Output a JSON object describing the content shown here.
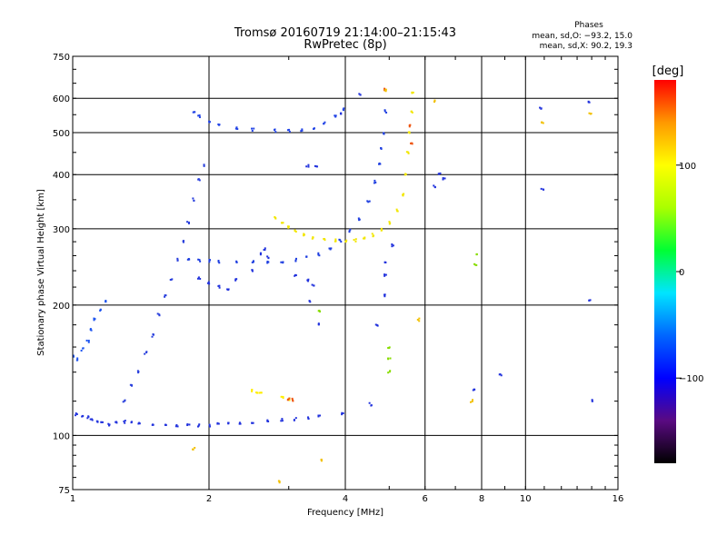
{
  "chart_data": {
    "type": "scatter",
    "title": "Tromsø 20160719 21:14:00–21:15:43",
    "subtitle": "RwPretec (8p)",
    "xlabel": "Frequency [MHz]",
    "ylabel": "Stationary phase Virtual Height [km]",
    "x_scale": "log",
    "y_scale": "log",
    "xlim": [
      1,
      16
    ],
    "ylim": [
      75,
      750
    ],
    "x_ticks": [
      1,
      2,
      4,
      6,
      8,
      10,
      16
    ],
    "y_ticks": [
      75,
      100,
      200,
      300,
      400,
      500,
      600,
      750
    ],
    "grid": true,
    "phase_info": {
      "heading": "Phases",
      "line_o": "mean, sd,O: −93.2, 15.0",
      "line_x": "mean, sd,X:  90.2, 19.3"
    },
    "colorbar": {
      "label": "[deg]",
      "range": [
        -180,
        180
      ],
      "ticks": [
        100,
        0,
        -100
      ],
      "tick_labels": [
        "100",
        "0",
        "−100"
      ],
      "stops": [
        "#000000",
        "#5a0a82",
        "#0000ff",
        "#0066ff",
        "#00e5ff",
        "#00ff33",
        "#aaff00",
        "#ffff00",
        "#ff9900",
        "#ff0000"
      ]
    },
    "series": [
      {
        "color": "#2233dd",
        "phase": -95,
        "points": [
          [
            1.02,
            112
          ],
          [
            1.05,
            111
          ],
          [
            1.08,
            110
          ],
          [
            1.1,
            109
          ],
          [
            1.13,
            108
          ],
          [
            1.16,
            107
          ],
          [
            1.2,
            106
          ],
          [
            1.25,
            107
          ],
          [
            1.3,
            107.5
          ],
          [
            1.35,
            107
          ],
          [
            1.4,
            106.5
          ],
          [
            1.5,
            106
          ],
          [
            1.6,
            105.5
          ],
          [
            1.7,
            105.5
          ],
          [
            1.8,
            105.5
          ],
          [
            1.9,
            105.5
          ],
          [
            2.0,
            105.5
          ],
          [
            2.1,
            106
          ],
          [
            2.2,
            106.5
          ],
          [
            2.35,
            107
          ],
          [
            2.5,
            107.5
          ],
          [
            2.7,
            108
          ],
          [
            2.9,
            108.5
          ],
          [
            3.1,
            109
          ],
          [
            3.3,
            110
          ],
          [
            3.5,
            111
          ]
        ]
      },
      {
        "color": "#1f3fe0",
        "phase": -95,
        "points": [
          [
            1.8,
            255
          ],
          [
            1.9,
            254
          ],
          [
            2.0,
            253
          ],
          [
            2.1,
            252
          ],
          [
            2.3,
            251
          ],
          [
            2.5,
            251
          ],
          [
            2.7,
            251
          ],
          [
            2.9,
            252
          ],
          [
            3.1,
            254
          ],
          [
            3.3,
            257
          ],
          [
            3.5,
            262
          ],
          [
            3.7,
            270
          ],
          [
            3.9,
            282
          ],
          [
            4.1,
            297
          ],
          [
            4.3,
            315
          ],
          [
            4.5,
            345
          ],
          [
            4.65,
            385
          ],
          [
            4.75,
            425
          ],
          [
            4.8,
            460
          ],
          [
            4.85,
            500
          ],
          [
            4.9,
            560
          ]
        ]
      },
      {
        "color": "#2244e6",
        "phase": -95,
        "points": [
          [
            1.85,
            560
          ],
          [
            1.9,
            545
          ],
          [
            2.0,
            530
          ],
          [
            2.1,
            520
          ],
          [
            2.3,
            512
          ],
          [
            2.5,
            508
          ],
          [
            2.8,
            505
          ],
          [
            3.0,
            504
          ],
          [
            3.2,
            506
          ],
          [
            3.4,
            512
          ],
          [
            3.6,
            525
          ],
          [
            3.8,
            545
          ],
          [
            3.95,
            565
          ]
        ]
      },
      {
        "color": "#1e55f0",
        "phase": -90,
        "points": [
          [
            1.0,
            152
          ],
          [
            1.02,
            150
          ],
          [
            1.05,
            158
          ],
          [
            1.08,
            165
          ],
          [
            1.1,
            175
          ],
          [
            1.12,
            185
          ],
          [
            1.15,
            195
          ],
          [
            1.18,
            205
          ]
        ]
      },
      {
        "color": "#2a40dd",
        "phase": -95,
        "points": [
          [
            1.3,
            120
          ],
          [
            1.35,
            130
          ],
          [
            1.4,
            140
          ],
          [
            1.45,
            155
          ],
          [
            1.5,
            170
          ],
          [
            1.55,
            190
          ],
          [
            1.6,
            210
          ],
          [
            1.65,
            230
          ],
          [
            1.7,
            255
          ],
          [
            1.75,
            280
          ],
          [
            1.8,
            310
          ],
          [
            1.85,
            350
          ],
          [
            1.9,
            390
          ],
          [
            1.95,
            420
          ]
        ]
      },
      {
        "color": "#f2e600",
        "phase": 95,
        "points": [
          [
            2.8,
            318
          ],
          [
            2.9,
            310
          ],
          [
            3.0,
            302
          ],
          [
            3.1,
            296
          ],
          [
            3.25,
            290
          ],
          [
            3.4,
            286
          ],
          [
            3.6,
            283
          ],
          [
            3.8,
            282
          ],
          [
            4.0,
            281
          ],
          [
            4.2,
            282
          ],
          [
            4.4,
            285
          ],
          [
            4.6,
            290
          ],
          [
            4.8,
            298
          ],
          [
            5.0,
            310
          ],
          [
            5.2,
            330
          ],
          [
            5.35,
            360
          ],
          [
            5.45,
            400
          ],
          [
            5.5,
            450
          ],
          [
            5.55,
            500
          ],
          [
            5.6,
            560
          ],
          [
            5.62,
            620
          ]
        ]
      },
      {
        "color": "#ffee00",
        "phase": 90,
        "points": [
          [
            2.5,
            127
          ],
          [
            2.55,
            125
          ],
          [
            2.6,
            126
          ],
          [
            2.9,
            122
          ],
          [
            3.0,
            121
          ]
        ]
      },
      {
        "color": "#ee5511",
        "phase": 150,
        "points": [
          [
            3.0,
            121
          ],
          [
            3.05,
            121
          ],
          [
            4.9,
            630
          ],
          [
            5.55,
            520
          ],
          [
            5.6,
            470
          ]
        ]
      },
      {
        "color": "#2233dd",
        "phase": -100,
        "points": [
          [
            1.9,
            230
          ],
          [
            2.0,
            225
          ],
          [
            2.1,
            220
          ],
          [
            2.2,
            218
          ],
          [
            2.3,
            228
          ],
          [
            2.5,
            240
          ],
          [
            2.7,
            258
          ],
          [
            2.6,
            263
          ],
          [
            2.65,
            270
          ],
          [
            3.1,
            235
          ],
          [
            3.3,
            228
          ],
          [
            3.4,
            222
          ],
          [
            3.3,
            418
          ],
          [
            3.45,
            420
          ],
          [
            3.35,
            204
          ],
          [
            3.5,
            180
          ],
          [
            4.7,
            180
          ],
          [
            4.9,
            210
          ],
          [
            4.9,
            235
          ],
          [
            4.9,
            250
          ],
          [
            5.1,
            275
          ],
          [
            6.3,
            375
          ],
          [
            6.45,
            400
          ],
          [
            6.6,
            390
          ],
          [
            7.7,
            128
          ],
          [
            8.8,
            138
          ],
          [
            10.8,
            570
          ],
          [
            10.9,
            370
          ],
          [
            13.8,
            590
          ],
          [
            13.9,
            205
          ],
          [
            14.1,
            120
          ],
          [
            3.9,
            555
          ],
          [
            4.3,
            610
          ],
          [
            3.95,
            112
          ],
          [
            4.55,
            118
          ]
        ]
      },
      {
        "color": "#88dd00",
        "phase": 60,
        "points": [
          [
            7.75,
            248
          ],
          [
            7.8,
            262
          ],
          [
            5.0,
            140
          ],
          [
            5.0,
            150
          ],
          [
            5.0,
            160
          ],
          [
            3.5,
            193
          ]
        ]
      },
      {
        "color": "#f2c000",
        "phase": 110,
        "points": [
          [
            1.85,
            93
          ],
          [
            2.85,
            78
          ],
          [
            3.55,
            88
          ],
          [
            5.8,
            185
          ],
          [
            6.3,
            590
          ],
          [
            10.9,
            525
          ],
          [
            13.9,
            555
          ],
          [
            4.9,
            625
          ],
          [
            7.6,
            120
          ]
        ]
      }
    ]
  }
}
